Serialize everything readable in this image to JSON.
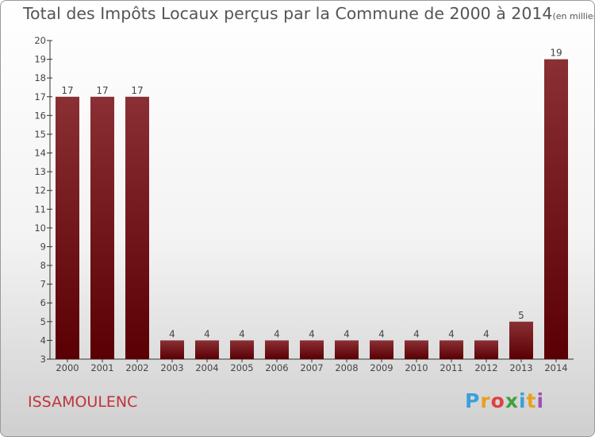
{
  "header": {
    "title": "Total des Impôts Locaux perçus par la Commune de 2000 à 2014",
    "unit": "(en milliers d'€)"
  },
  "footer": {
    "commune": "ISSAMOULENC",
    "logo": "Proxiti",
    "logo_letters": [
      {
        "ch": "P",
        "color": "#3aa0d8"
      },
      {
        "ch": "r",
        "color": "#e8a020"
      },
      {
        "ch": "o",
        "color": "#e04040"
      },
      {
        "ch": "x",
        "color": "#40a040"
      },
      {
        "ch": "i",
        "color": "#3aa0d8"
      },
      {
        "ch": "t",
        "color": "#e8a020"
      },
      {
        "ch": "i",
        "color": "#a050b0"
      }
    ]
  },
  "colors": {
    "bar_top": "#8a3034",
    "bar_bottom": "#5a0004",
    "axis": "#333333"
  },
  "chart_data": {
    "type": "bar",
    "title": "Total des Impôts Locaux perçus par la Commune de 2000 à 2014",
    "xlabel": "",
    "ylabel": "",
    "ylim": [
      3,
      20
    ],
    "yticks": [
      3,
      4,
      5,
      6,
      7,
      8,
      9,
      10,
      11,
      12,
      13,
      14,
      15,
      16,
      17,
      18,
      19,
      20
    ],
    "categories": [
      "2000",
      "2001",
      "2002",
      "2003",
      "2004",
      "2005",
      "2006",
      "2007",
      "2008",
      "2009",
      "2010",
      "2011",
      "2012",
      "2013",
      "2014"
    ],
    "values": [
      17,
      17,
      17,
      4,
      4,
      4,
      4,
      4,
      4,
      4,
      4,
      4,
      4,
      5,
      19
    ],
    "grid": false
  }
}
